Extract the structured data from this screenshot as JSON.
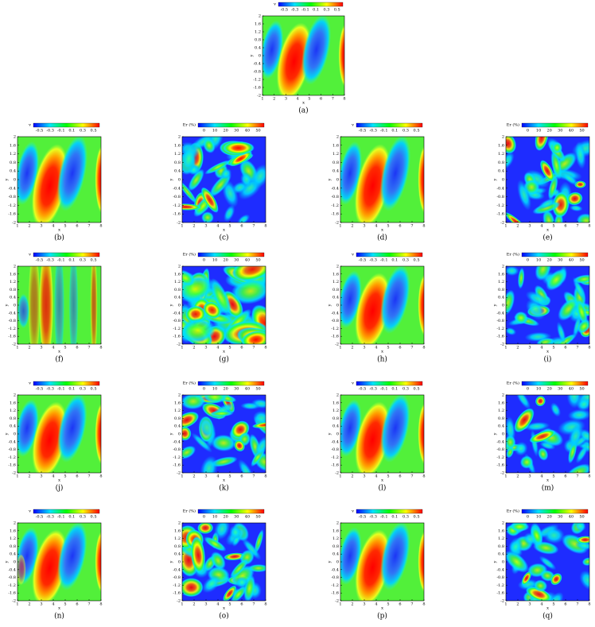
{
  "figure": {
    "x_label": "x",
    "y_label": "y",
    "xticks": [
      "1",
      "2",
      "3",
      "4",
      "5",
      "6",
      "7",
      "8"
    ],
    "yticks": [
      "2",
      "1.6",
      "1.2",
      "0.8",
      "0.4",
      "0",
      "-0.4",
      "-0.8",
      "-1.2",
      "-1.6",
      "-2"
    ],
    "panels": [
      {
        "label": "(a)",
        "colorbar": {
          "title": "v",
          "ticks": [
            "-0.5",
            "-0.3",
            "-0.1",
            "0.1",
            "0.3",
            "0.5"
          ]
        }
      },
      {
        "label": "(b)",
        "colorbar": {
          "title": "v",
          "ticks": [
            "-0.5",
            "-0.3",
            "-0.1",
            "0.1",
            "0.3",
            "0.5"
          ]
        }
      },
      {
        "label": "(c)",
        "colorbar": {
          "title": "Er (%)",
          "ticks": [
            "0",
            "10",
            "20",
            "30",
            "40",
            "50"
          ]
        }
      },
      {
        "label": "(d)",
        "colorbar": {
          "title": "v",
          "ticks": [
            "-0.5",
            "-0.3",
            "-0.1",
            "0.1",
            "0.3",
            "0.5"
          ]
        }
      },
      {
        "label": "(e)",
        "colorbar": {
          "title": "Er (%)",
          "ticks": [
            "0",
            "10",
            "20",
            "30",
            "40",
            "50"
          ]
        }
      },
      {
        "label": "(f)",
        "colorbar": {
          "title": "v",
          "ticks": [
            "-0.5",
            "-0.3",
            "-0.1",
            "0.1",
            "0.3",
            "0.5"
          ]
        }
      },
      {
        "label": "(g)",
        "colorbar": {
          "title": "Er (%)",
          "ticks": [
            "0",
            "10",
            "20",
            "30",
            "40",
            "50"
          ]
        }
      },
      {
        "label": "(h)",
        "colorbar": {
          "title": "v",
          "ticks": [
            "-0.5",
            "-0.3",
            "-0.1",
            "0.1",
            "0.3",
            "0.5"
          ]
        }
      },
      {
        "label": "(i)",
        "colorbar": {
          "title": "Er (%)",
          "ticks": [
            "0",
            "10",
            "20",
            "30",
            "40",
            "50"
          ]
        }
      },
      {
        "label": "(j)",
        "colorbar": {
          "title": "v",
          "ticks": [
            "-0.5",
            "-0.3",
            "-0.1",
            "0.1",
            "0.3",
            "0.5"
          ]
        }
      },
      {
        "label": "(k)",
        "colorbar": {
          "title": "Er (%)",
          "ticks": [
            "0",
            "10",
            "20",
            "30",
            "40",
            "50"
          ]
        }
      },
      {
        "label": "(l)",
        "colorbar": {
          "title": "v",
          "ticks": [
            "-0.5",
            "-0.3",
            "-0.1",
            "0.1",
            "0.3",
            "0.5"
          ]
        }
      },
      {
        "label": "(m)",
        "colorbar": {
          "title": "Er (%)",
          "ticks": [
            "0",
            "10",
            "20",
            "30",
            "40",
            "50"
          ]
        }
      },
      {
        "label": "(n)",
        "colorbar": {
          "title": "v",
          "ticks": [
            "-0.5",
            "-0.3",
            "-0.1",
            "0.1",
            "0.3",
            "0.5"
          ]
        }
      },
      {
        "label": "(o)",
        "colorbar": {
          "title": "Er (%)",
          "ticks": [
            "0",
            "10",
            "20",
            "30",
            "40",
            "50"
          ]
        }
      },
      {
        "label": "(p)",
        "colorbar": {
          "title": "v",
          "ticks": [
            "-0.5",
            "-0.3",
            "-0.1",
            "0.1",
            "0.3",
            "0.5"
          ]
        }
      },
      {
        "label": "(q)",
        "colorbar": {
          "title": "Er (%)",
          "ticks": [
            "0",
            "10",
            "20",
            "30",
            "40",
            "50"
          ]
        }
      }
    ]
  }
}
